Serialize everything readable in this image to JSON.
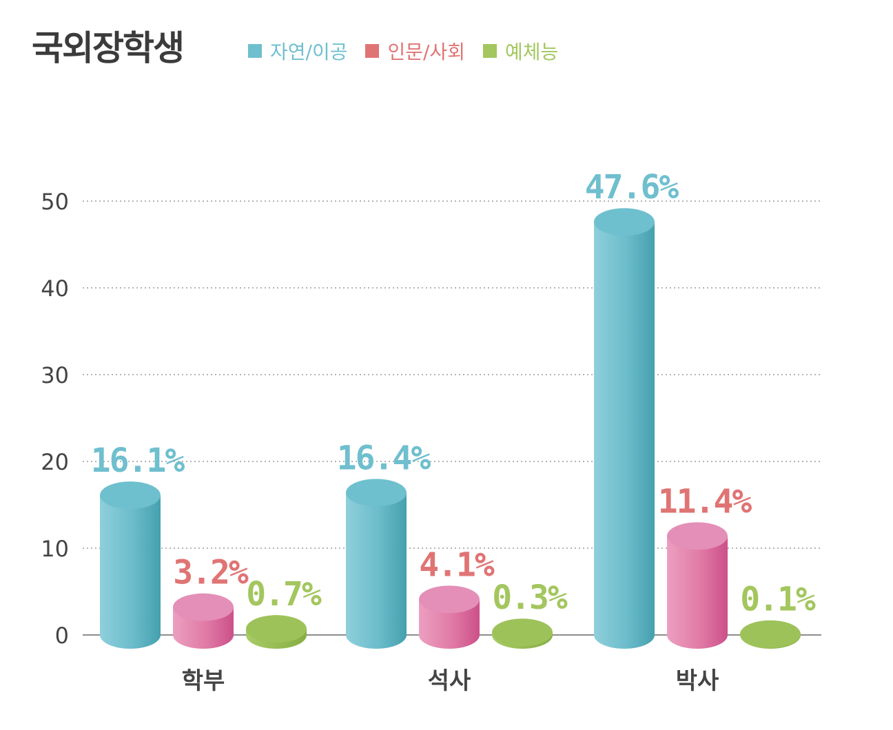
{
  "chart_data": {
    "type": "bar",
    "title": "국외장학생",
    "categories": [
      "학부",
      "석사",
      "박사"
    ],
    "series": [
      {
        "name": "자연/이공",
        "values": [
          16.1,
          16.4,
          47.6
        ],
        "labels": [
          "16.1%",
          "16.4%",
          "47.6%"
        ],
        "color": "#6fbfce"
      },
      {
        "name": "인문/사회",
        "values": [
          3.2,
          4.1,
          11.4
        ],
        "labels": [
          "3.2%",
          "4.1%",
          "11.4%"
        ],
        "color": "#e07474"
      },
      {
        "name": "예체능",
        "values": [
          0.7,
          0.3,
          0.1
        ],
        "labels": [
          "0.7%",
          "0.3%",
          "0.1%"
        ],
        "color": "#a3c65e"
      }
    ],
    "yticks": [
      "0",
      "10",
      "20",
      "30",
      "40",
      "50"
    ],
    "ylim": [
      0,
      50
    ],
    "grid": true,
    "legend_position": "top"
  },
  "colors": {
    "title": "#3b3b3b",
    "axis_text": "#444444",
    "grid": "#9a9a9a"
  }
}
